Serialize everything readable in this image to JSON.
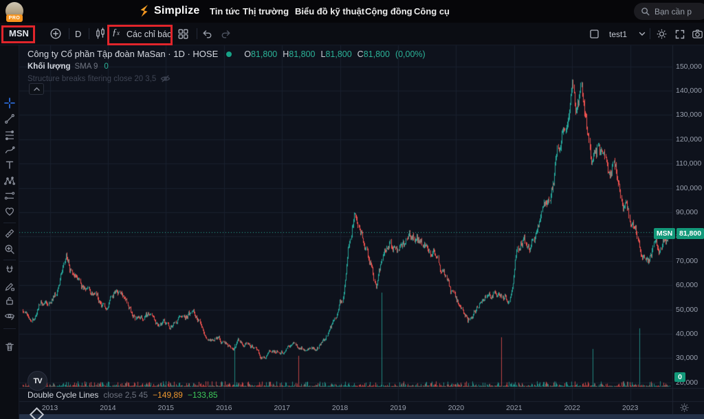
{
  "topnav": {
    "pro_badge": "PRO",
    "brand": "Simplize",
    "items": [
      {
        "label": "Tin tức"
      },
      {
        "label": "Thị trường"
      },
      {
        "label": "Biểu đồ kỹ thuật"
      },
      {
        "label": "Cộng đồng"
      },
      {
        "label": "Công cụ"
      }
    ],
    "search_placeholder": "Bạn cần p"
  },
  "toolbar": {
    "symbol": "MSN",
    "interval": "D",
    "indicators_label": "Các chỉ báo",
    "layout_name": "test1"
  },
  "legend": {
    "title": "Công ty Cổ phần Tập đoàn MaSan · 1D · HOSE",
    "ohlc": [
      {
        "k": "O",
        "v": "81,800"
      },
      {
        "k": "H",
        "v": "81,800"
      },
      {
        "k": "L",
        "v": "81,800"
      },
      {
        "k": "C",
        "v": "81,800"
      }
    ],
    "change": "(0,00%)",
    "volume": {
      "name": "Khối lượng",
      "ma": "SMA 9",
      "value": "0"
    },
    "hidden_indicator": "Structure breaks fitering close 20 3,5"
  },
  "pane2": {
    "name": "Double Cycle Lines",
    "params": "close 2,5 45",
    "v1": "−149,89",
    "v2": "−133,85"
  },
  "price_scale": {
    "symbol_chip": "MSN",
    "current": "81,800",
    "volume_chip": "0"
  },
  "watermark": "TV",
  "colors": {
    "up": "#26a69a",
    "down": "#ef5350",
    "chart_bg": "#0e121c",
    "grid": "#19202e",
    "axis_border": "#1f2533",
    "price_line": "#2bb398",
    "chip": "#13997a",
    "annotation": "#e1252b"
  },
  "chart_data": {
    "type": "candlestick",
    "symbol": "MSN",
    "exchange": "HOSE",
    "interval": "1D",
    "last": {
      "open": 81800,
      "high": 81800,
      "low": 81800,
      "close": 81800,
      "change_pct": "0,00%"
    },
    "price_line_value": 81800,
    "x_domain": [
      2012.53,
      2023.68
    ],
    "price_ticks": [
      {
        "v": 150000,
        "label": "150,000"
      },
      {
        "v": 140000,
        "label": "140,000"
      },
      {
        "v": 130000,
        "label": "130,000"
      },
      {
        "v": 120000,
        "label": "120,000"
      },
      {
        "v": 110000,
        "label": "110,000"
      },
      {
        "v": 100000,
        "label": "100,000"
      },
      {
        "v": 90000,
        "label": "90,000"
      },
      {
        "v": 80000,
        "label": "80,000"
      },
      {
        "v": 70000,
        "label": "70,000"
      },
      {
        "v": 60000,
        "label": "60,000"
      },
      {
        "v": 50000,
        "label": "50,000"
      },
      {
        "v": 40000,
        "label": "40,000"
      },
      {
        "v": 30000,
        "label": "30,000"
      },
      {
        "v": 20000,
        "label": "20,000"
      }
    ],
    "year_ticks": [
      {
        "v": 2013,
        "label": "2013"
      },
      {
        "v": 2014,
        "label": "2014"
      },
      {
        "v": 2015,
        "label": "2015"
      },
      {
        "v": 2016,
        "label": "2016"
      },
      {
        "v": 2017,
        "label": "2017"
      },
      {
        "v": 2018,
        "label": "2018"
      },
      {
        "v": 2019,
        "label": "2019"
      },
      {
        "v": 2020,
        "label": "2020"
      },
      {
        "v": 2021,
        "label": "2021"
      },
      {
        "v": 2022,
        "label": "2022"
      },
      {
        "v": 2023,
        "label": "2023"
      }
    ],
    "anchors": [
      [
        2012.53,
        50000
      ],
      [
        2012.7,
        47000
      ],
      [
        2012.85,
        53000
      ],
      [
        2013.0,
        52000
      ],
      [
        2013.1,
        57000
      ],
      [
        2013.2,
        64000
      ],
      [
        2013.28,
        70000
      ],
      [
        2013.35,
        65000
      ],
      [
        2013.45,
        68000
      ],
      [
        2013.55,
        61000
      ],
      [
        2013.7,
        57000
      ],
      [
        2013.85,
        54000
      ],
      [
        2014.0,
        51000
      ],
      [
        2014.15,
        56000
      ],
      [
        2014.2,
        57000
      ],
      [
        2014.35,
        50000
      ],
      [
        2014.5,
        46000
      ],
      [
        2014.65,
        48000
      ],
      [
        2014.8,
        45000
      ],
      [
        2015.0,
        43000
      ],
      [
        2015.15,
        44000
      ],
      [
        2015.3,
        46000
      ],
      [
        2015.45,
        49000
      ],
      [
        2015.6,
        44000
      ],
      [
        2015.75,
        40000
      ],
      [
        2015.9,
        38000
      ],
      [
        2016.1,
        35000
      ],
      [
        2016.3,
        37000
      ],
      [
        2016.5,
        34000
      ],
      [
        2016.62,
        30000
      ],
      [
        2016.8,
        33000
      ],
      [
        2017.0,
        33000
      ],
      [
        2017.2,
        36000
      ],
      [
        2017.4,
        34000
      ],
      [
        2017.6,
        35000
      ],
      [
        2017.75,
        38000
      ],
      [
        2017.9,
        44000
      ],
      [
        2018.05,
        55000
      ],
      [
        2018.15,
        75000
      ],
      [
        2018.25,
        93000
      ],
      [
        2018.35,
        82000
      ],
      [
        2018.45,
        75000
      ],
      [
        2018.55,
        68000
      ],
      [
        2018.62,
        58000
      ],
      [
        2018.72,
        70000
      ],
      [
        2018.85,
        76000
      ],
      [
        2019.0,
        73000
      ],
      [
        2019.15,
        78000
      ],
      [
        2019.3,
        80000
      ],
      [
        2019.45,
        76000
      ],
      [
        2019.6,
        72000
      ],
      [
        2019.75,
        65000
      ],
      [
        2019.9,
        57000
      ],
      [
        2020.05,
        51000
      ],
      [
        2020.2,
        45000
      ],
      [
        2020.35,
        50000
      ],
      [
        2020.5,
        56000
      ],
      [
        2020.65,
        58000
      ],
      [
        2020.8,
        54000
      ],
      [
        2020.95,
        56000
      ],
      [
        2021.05,
        76000
      ],
      [
        2021.15,
        80000
      ],
      [
        2021.25,
        75000
      ],
      [
        2021.4,
        83000
      ],
      [
        2021.5,
        88000
      ],
      [
        2021.6,
        98000
      ],
      [
        2021.7,
        110000
      ],
      [
        2021.8,
        121000
      ],
      [
        2021.9,
        128000
      ],
      [
        2022.0,
        144000
      ],
      [
        2022.08,
        132000
      ],
      [
        2022.15,
        138000
      ],
      [
        2022.25,
        122000
      ],
      [
        2022.35,
        112000
      ],
      [
        2022.45,
        118000
      ],
      [
        2022.55,
        108000
      ],
      [
        2022.65,
        103000
      ],
      [
        2022.72,
        110000
      ],
      [
        2022.8,
        100000
      ],
      [
        2022.9,
        94000
      ],
      [
        2023.0,
        86000
      ],
      [
        2023.1,
        80000
      ],
      [
        2023.2,
        75000
      ],
      [
        2023.3,
        71000
      ],
      [
        2023.42,
        77000
      ],
      [
        2023.5,
        74000
      ],
      [
        2023.6,
        79000
      ],
      [
        2023.68,
        81800
      ]
    ],
    "volume_spikes": [
      {
        "t": 2016.17,
        "h": 62,
        "dir": "up"
      },
      {
        "t": 2017.28,
        "h": 45,
        "dir": "down"
      },
      {
        "t": 2018.72,
        "h": 137,
        "dir": "up"
      },
      {
        "t": 2020.77,
        "h": 72,
        "dir": "down"
      },
      {
        "t": 2022.35,
        "h": 55,
        "dir": "up"
      },
      {
        "t": 2023.15,
        "h": 85,
        "dir": "up"
      }
    ]
  }
}
